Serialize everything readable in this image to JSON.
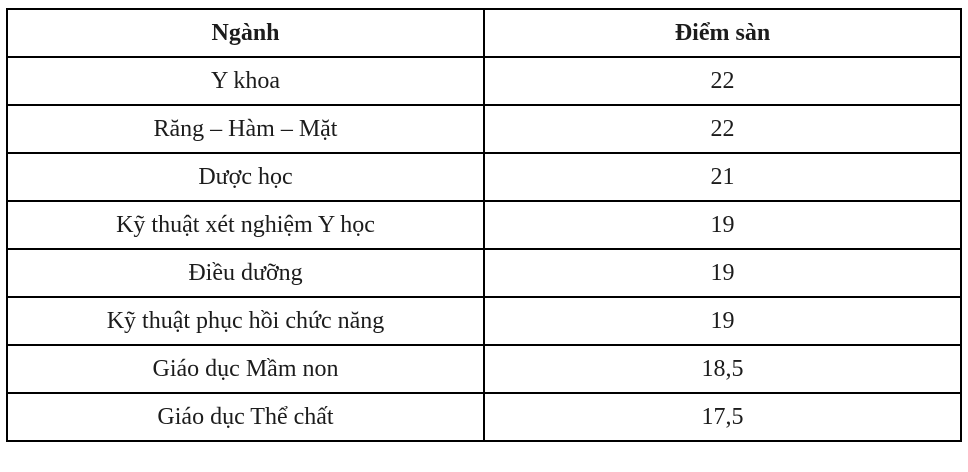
{
  "table": {
    "name": "admission-floor-scores",
    "columns": [
      {
        "key": "major",
        "label": "Ngành"
      },
      {
        "key": "score",
        "label": "Điểm sàn"
      }
    ],
    "rows": [
      {
        "major": "Y khoa",
        "score": "22"
      },
      {
        "major": "Răng – Hàm – Mặt",
        "score": "22"
      },
      {
        "major": "Dược học",
        "score": "21"
      },
      {
        "major": "Kỹ thuật xét nghiệm Y học",
        "score": "19"
      },
      {
        "major": "Điều dưỡng",
        "score": "19"
      },
      {
        "major": "Kỹ thuật phục hồi chức năng",
        "score": "19"
      },
      {
        "major": "Giáo dục Mầm non",
        "score": "18,5"
      },
      {
        "major": "Giáo dục Thể chất",
        "score": "17,5"
      }
    ],
    "colors": {
      "border": "#000000",
      "text": "#1c1c1c",
      "background": "#ffffff"
    }
  }
}
